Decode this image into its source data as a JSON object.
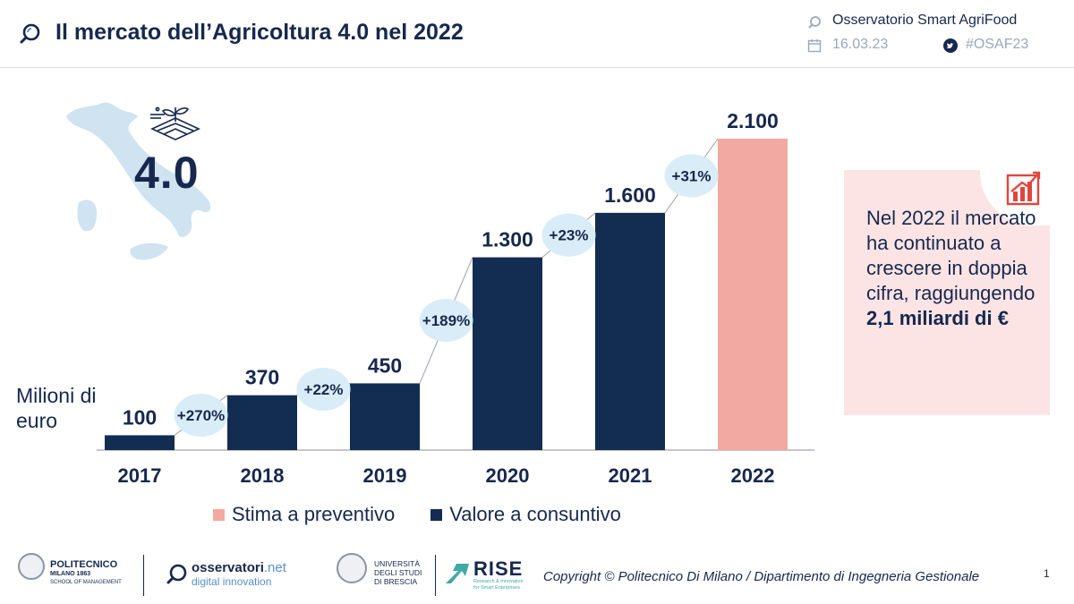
{
  "header": {
    "title": "Il mercato dell’Agricoltura 4.0 nel 2022",
    "org": "Osservatorio Smart AgriFood",
    "date": "16.03.23",
    "hashtag": "#OSAF23"
  },
  "badge": "4.0",
  "chart_data": {
    "type": "bar",
    "categories": [
      "2017",
      "2018",
      "2019",
      "2020",
      "2021",
      "2022"
    ],
    "values": [
      100,
      370,
      450,
      1300,
      1600,
      2100
    ],
    "value_labels": [
      "100",
      "370",
      "450",
      "1.300",
      "1.600",
      "2.100"
    ],
    "growth_labels": [
      "+270%",
      "+22%",
      "+189%",
      "+23%",
      "+31%"
    ],
    "ylabel": "Milioni di euro",
    "ylim": [
      0,
      2100
    ],
    "legend": [
      {
        "label": "Stima a preventivo",
        "color": "#f2a9a1"
      },
      {
        "label": "Valore a consuntivo",
        "color": "#132c51"
      }
    ],
    "bar_kinds": [
      "consuntivo",
      "consuntivo",
      "consuntivo",
      "consuntivo",
      "consuntivo",
      "preventivo"
    ],
    "colors": {
      "consuntivo": "#132c51",
      "preventivo": "#f2a9a1",
      "bubble": "#d9edf8"
    }
  },
  "callout": {
    "text": "Nel 2022 il mercato ha continuato a crescere in doppia cifra, raggiungendo",
    "bold": "2,1 miliardi di €"
  },
  "footer": {
    "polimi_name": "POLITECNICO",
    "polimi_sub": "MILANO 1863",
    "polimi_sub2": "SCHOOL OF MANAGEMENT",
    "osservatori_name": "osservatori",
    "osservatori_suffix": ".net",
    "osservatori_sub": "digital innovation",
    "unibs_l1": "UNIVERSITÀ",
    "unibs_l2": "DEGLI STUDI",
    "unibs_l3": "DI BRESCIA",
    "rise_name": "RISE",
    "rise_sub1": "Research & Innovation",
    "rise_sub2": "for Smart Enterprises",
    "copyright": "Copyright © Politecnico Di Milano / Dipartimento di Ingegneria Gestionale",
    "page": "1"
  }
}
